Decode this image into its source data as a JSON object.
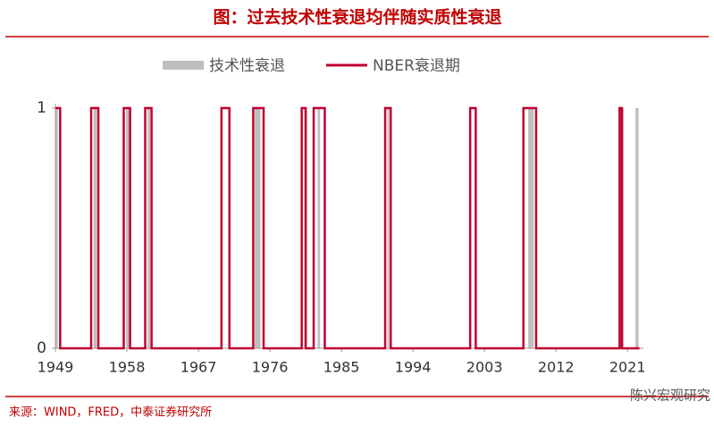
{
  "chart_data": {
    "type": "step-line",
    "title": "图：过去技术性衰退均伴随实质性衰退",
    "source": "来源：WIND，FRED，中泰证券研究所",
    "watermark": "陈兴宏观研究",
    "xlim": [
      1949,
      2023
    ],
    "xticks": [
      1949,
      1958,
      1967,
      1976,
      1985,
      1994,
      2003,
      2012,
      2021
    ],
    "ylim": [
      0,
      1
    ],
    "yticks": [
      0,
      1
    ],
    "series": [
      {
        "name": "技术性衰退",
        "type": "bar",
        "color": "#bfbfbf",
        "periods": [
          [
            1949.0,
            1949.3
          ],
          [
            1953.8,
            1954.2
          ],
          [
            1957.9,
            1958.3
          ],
          [
            1960.6,
            1960.9
          ],
          [
            1974.1,
            1974.8
          ],
          [
            1980.3,
            1980.6
          ],
          [
            1982.0,
            1982.3
          ],
          [
            1990.8,
            1991.0
          ],
          [
            2008.5,
            2009.2
          ],
          [
            2020.0,
            2020.5
          ],
          [
            2022.0,
            2022.4
          ]
        ],
        "values": [
          1,
          1,
          1,
          1,
          1,
          1,
          1,
          1,
          1,
          1,
          1
        ]
      },
      {
        "name": "NBER衰退期",
        "type": "line",
        "color": "#c00030",
        "x": [
          1949,
          1949.6,
          1949.6,
          1953.5,
          1953.5,
          1954.4,
          1954.4,
          1957.6,
          1957.6,
          1958.4,
          1958.4,
          1960.3,
          1960.3,
          1961.1,
          1961.1,
          1969.9,
          1969.9,
          1970.9,
          1970.9,
          1973.9,
          1973.9,
          1975.2,
          1975.2,
          1980.0,
          1980.0,
          1980.5,
          1980.5,
          1981.5,
          1981.5,
          1982.9,
          1982.9,
          1990.5,
          1990.5,
          1991.2,
          1991.2,
          2001.2,
          2001.2,
          2001.9,
          2001.9,
          2007.9,
          2007.9,
          2009.5,
          2009.5,
          2020.0,
          2020.0,
          2020.3,
          2020.3,
          2022.5
        ],
        "values": [
          1,
          1,
          0,
          0,
          1,
          1,
          0,
          0,
          1,
          1,
          0,
          0,
          1,
          1,
          0,
          0,
          1,
          1,
          0,
          0,
          1,
          1,
          0,
          0,
          1,
          1,
          0,
          0,
          1,
          1,
          0,
          0,
          1,
          1,
          0,
          0,
          1,
          1,
          0,
          0,
          1,
          1,
          0,
          0,
          1,
          1,
          0,
          0
        ]
      }
    ]
  }
}
